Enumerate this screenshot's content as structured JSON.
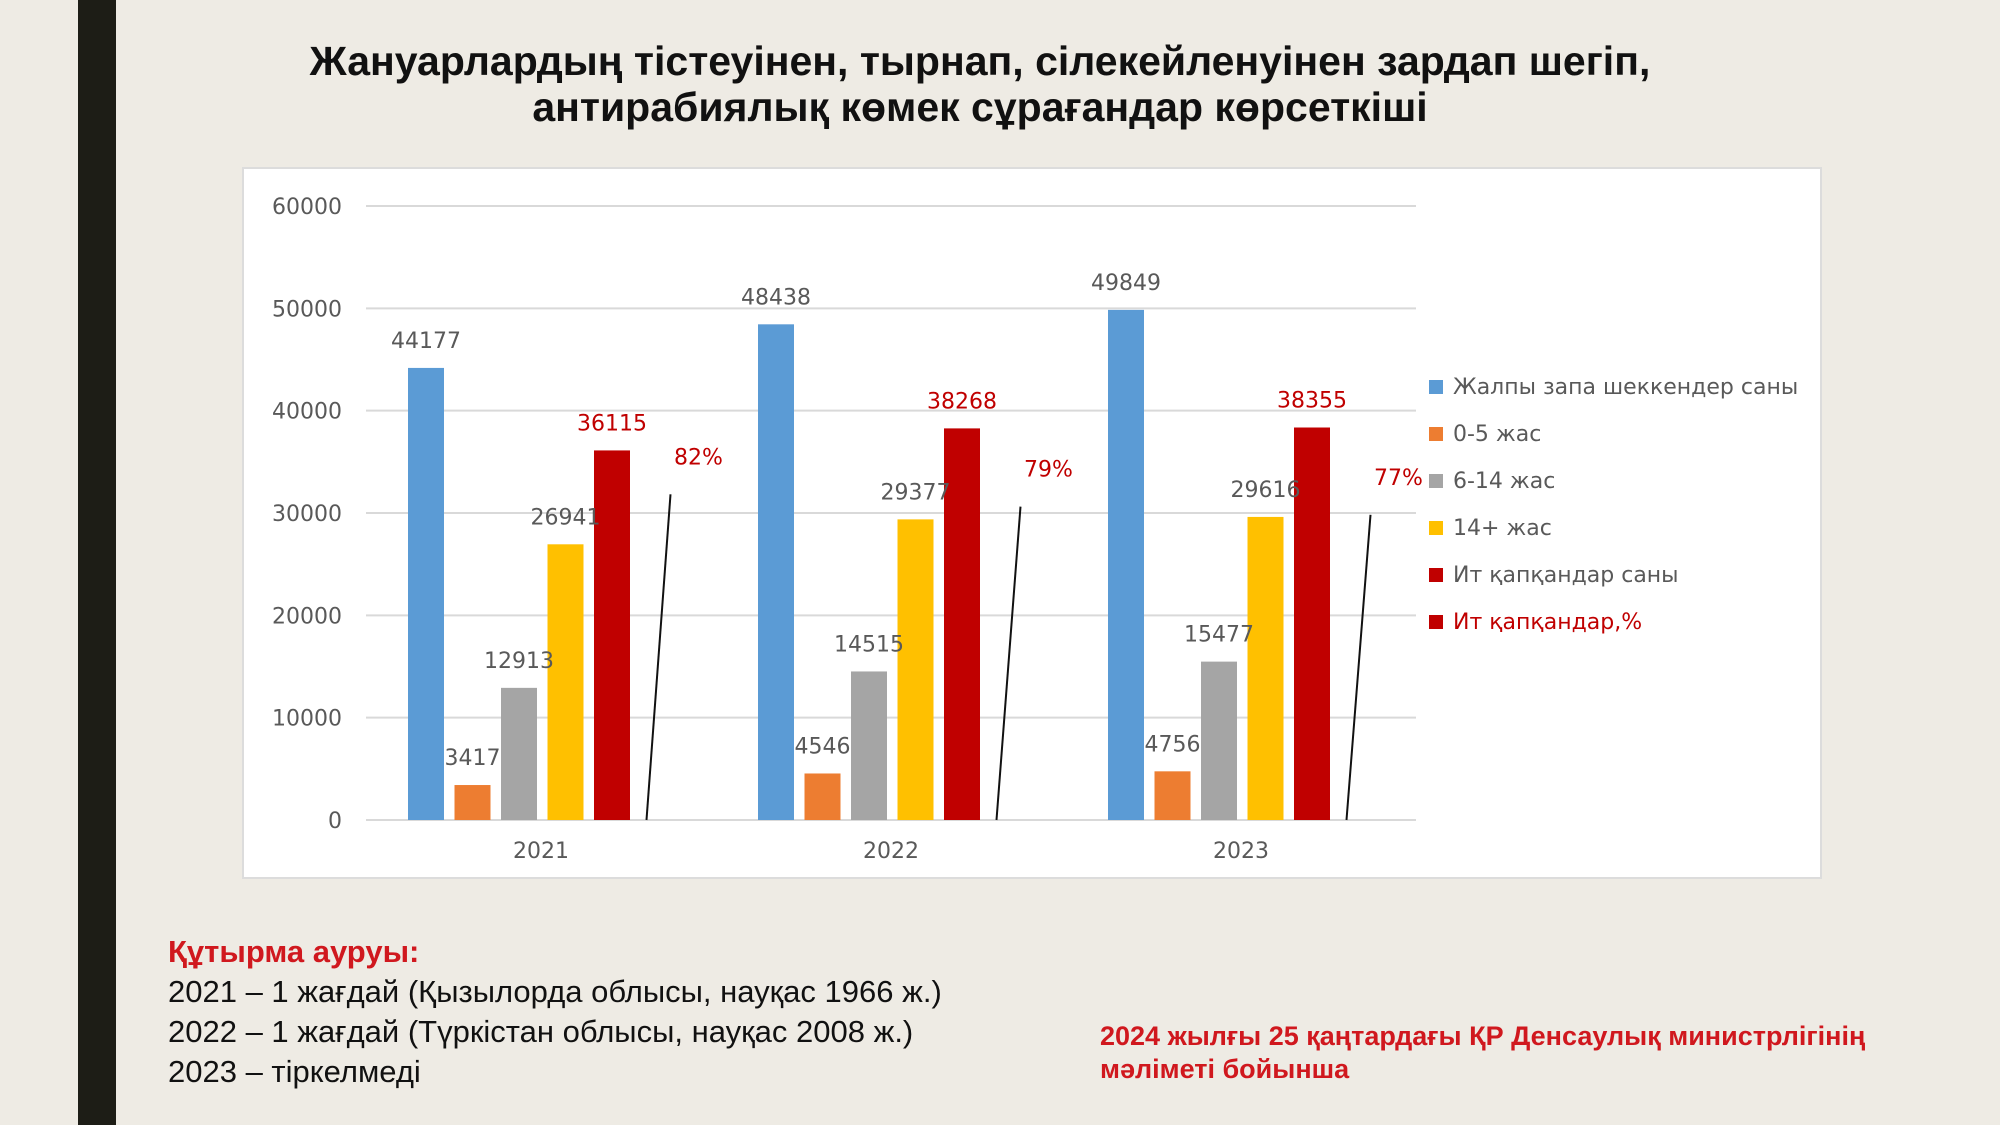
{
  "title": {
    "line1": "Жануарлардың тістеуінен, тырнап, сілекейленуінен зардап шегіп,",
    "line2": "антирабиялық көмек сұрағандар көрсеткіші"
  },
  "chart_data": {
    "type": "bar",
    "categories": [
      "2021",
      "2022",
      "2023"
    ],
    "ylim": [
      0,
      60000
    ],
    "yticks": [
      0,
      10000,
      20000,
      30000,
      40000,
      50000,
      60000
    ],
    "grid": true,
    "legend_position": "right",
    "series": [
      {
        "name": "Жалпы запа шеккендер саны",
        "color": "#5b9bd5",
        "values": [
          44177,
          48438,
          49849
        ],
        "labels": [
          "44177",
          "48438",
          "49849"
        ]
      },
      {
        "name": "0-5 жас",
        "color": "#ed7d31",
        "values": [
          3417,
          4546,
          4756
        ],
        "labels": [
          "3417",
          "4546",
          "4756"
        ]
      },
      {
        "name": "6-14 жас",
        "color": "#a5a5a5",
        "values": [
          12913,
          14515,
          15477
        ],
        "labels": [
          "12913",
          "14515",
          "15477"
        ]
      },
      {
        "name": "14+ жас",
        "color": "#ffc000",
        "values": [
          26941,
          29377,
          29616
        ],
        "labels": [
          "26941",
          "29377",
          "29616"
        ]
      },
      {
        "name": "Ит қапқандар саны",
        "color": "#c00000",
        "values": [
          36115,
          38268,
          38355
        ],
        "labels": [
          "36115",
          "38268",
          "38355"
        ]
      },
      {
        "name": "Ит қапқандар,%",
        "color": "#c00000",
        "values": [
          82,
          79,
          77
        ],
        "labels": [
          "82%",
          "79%",
          "77%"
        ]
      }
    ],
    "label_color": "#595959",
    "highlight_label_color": "#c00000"
  },
  "notes": {
    "title": "Құтырма ауруы:",
    "lines": [
      "2021 – 1 жағдай (Қызылорда облысы, науқас 1966 ж.)",
      "2022 – 1 жағдай (Түркістан облысы, науқас 2008 ж.)",
      "2023 – тіркелмеді"
    ]
  },
  "source": {
    "line1": "2024 жылғы 25 қаңтардағы ҚР Денсаулық министрлігінің",
    "line2": "мәліметі бойынша"
  }
}
